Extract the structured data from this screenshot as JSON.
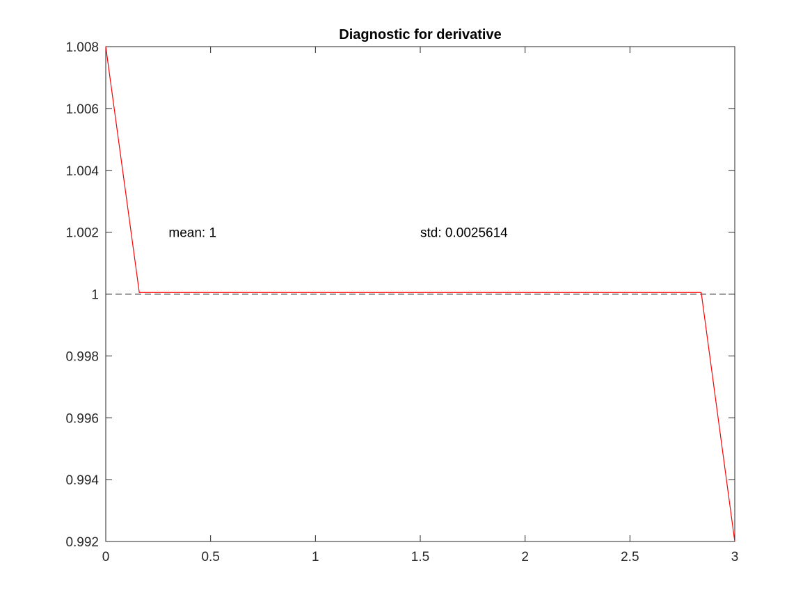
{
  "chart_data": {
    "type": "line",
    "title": "Diagnostic for derivative",
    "xlabel": "",
    "ylabel": "",
    "xlim": [
      0,
      3
    ],
    "ylim": [
      0.992,
      1.008
    ],
    "xticks": [
      0,
      0.5,
      1,
      1.5,
      2,
      2.5,
      3
    ],
    "xtick_labels": [
      "0",
      "0.5",
      "1",
      "1.5",
      "2",
      "2.5",
      "3"
    ],
    "yticks": [
      0.992,
      0.994,
      0.996,
      0.998,
      1,
      1.002,
      1.004,
      1.006,
      1.008
    ],
    "ytick_labels": [
      "0.992",
      "0.994",
      "0.996",
      "0.998",
      "1",
      "1.002",
      "1.004",
      "1.006",
      "1.008"
    ],
    "grid": false,
    "series": [
      {
        "color": "#ff0000",
        "style": "solid",
        "x": [
          0,
          0.16,
          2.84,
          3
        ],
        "y": [
          1.008,
          1.00005,
          1.00005,
          0.992
        ]
      }
    ],
    "reference_line": {
      "y": 1,
      "color": "#000000",
      "style": "dashed"
    },
    "annotations": [
      {
        "text": "mean: 1",
        "x": 0.3,
        "y": 1.002
      },
      {
        "text": "std: 0.0025614",
        "x": 1.5,
        "y": 1.002
      }
    ]
  }
}
